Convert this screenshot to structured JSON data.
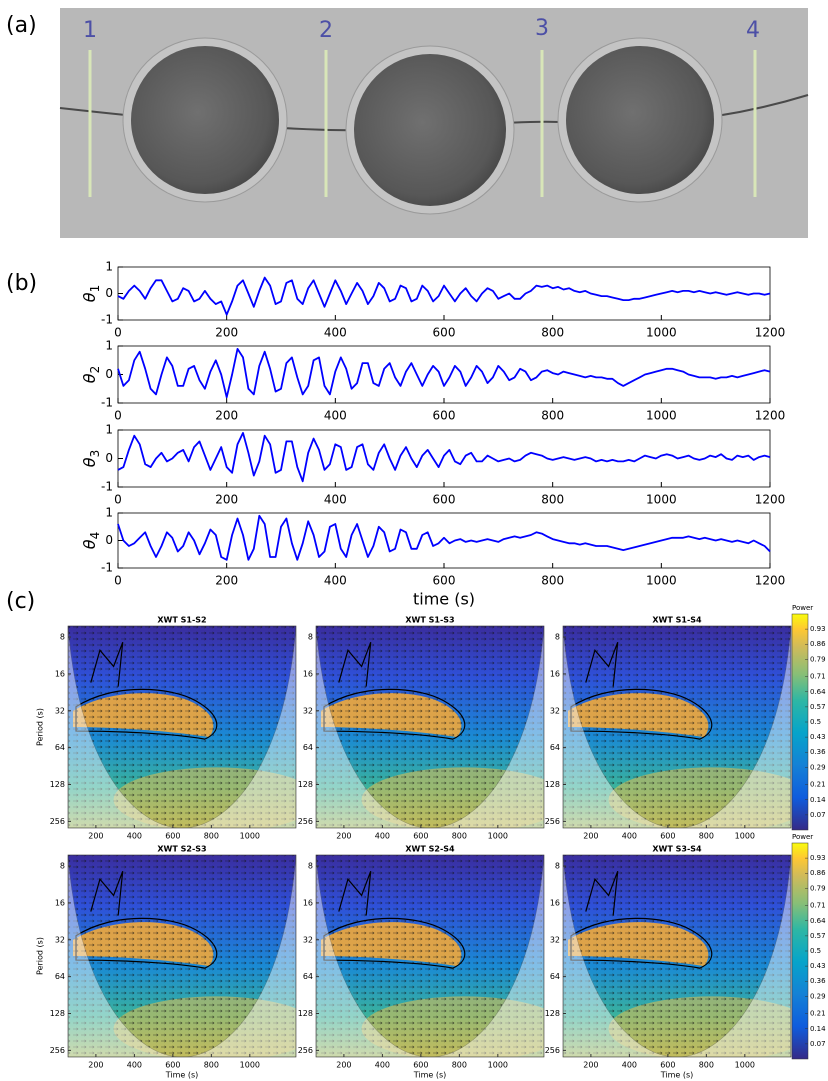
{
  "panel_labels": [
    "(a)",
    "(b)",
    "(c)"
  ],
  "photo_markers": [
    "1",
    "2",
    "3",
    "4"
  ],
  "chart_data": [
    {
      "type": "line",
      "ylabel": [
        "θ",
        "1"
      ],
      "color": "#0000ff",
      "xlim": [
        0,
        1200
      ],
      "ylim": [
        -1,
        1
      ],
      "xticks": [
        0,
        200,
        400,
        600,
        800,
        1000,
        1200
      ],
      "yticks": [
        -1,
        0,
        1
      ],
      "x": [
        0,
        10,
        20,
        30,
        40,
        50,
        60,
        70,
        80,
        90,
        100,
        110,
        120,
        130,
        140,
        150,
        160,
        170,
        180,
        190,
        200,
        210,
        220,
        230,
        240,
        250,
        260,
        270,
        280,
        290,
        300,
        310,
        320,
        330,
        340,
        350,
        360,
        370,
        380,
        390,
        400,
        410,
        420,
        430,
        440,
        450,
        460,
        470,
        480,
        490,
        500,
        510,
        520,
        530,
        540,
        550,
        560,
        570,
        580,
        590,
        600,
        610,
        620,
        630,
        640,
        650,
        660,
        670,
        680,
        690,
        700,
        710,
        720,
        730,
        740,
        750,
        760,
        770,
        780,
        790,
        800,
        810,
        820,
        830,
        840,
        850,
        860,
        870,
        880,
        890,
        900,
        910,
        920,
        930,
        940,
        950,
        960,
        970,
        980,
        990,
        1000,
        1010,
        1020,
        1030,
        1040,
        1050,
        1060,
        1070,
        1080,
        1090,
        1100,
        1110,
        1120,
        1130,
        1140,
        1150,
        1160,
        1170,
        1180,
        1190,
        1200
      ],
      "values": [
        -0.1,
        -0.2,
        0.1,
        0.3,
        0.1,
        -0.2,
        0.2,
        0.5,
        0.5,
        0.1,
        -0.3,
        -0.2,
        0.2,
        0.1,
        -0.3,
        -0.2,
        0.1,
        -0.2,
        -0.4,
        -0.3,
        -0.8,
        -0.3,
        0.3,
        0.5,
        0.0,
        -0.5,
        0.1,
        0.6,
        0.3,
        -0.4,
        -0.3,
        0.4,
        0.5,
        -0.2,
        -0.4,
        0.2,
        0.5,
        0.0,
        -0.5,
        0.0,
        0.5,
        0.1,
        -0.4,
        0.0,
        0.4,
        0.1,
        -0.4,
        -0.1,
        0.4,
        0.2,
        -0.3,
        -0.2,
        0.3,
        0.2,
        -0.3,
        -0.2,
        0.3,
        0.1,
        -0.3,
        -0.1,
        0.3,
        0.0,
        -0.3,
        0.0,
        0.2,
        -0.1,
        -0.3,
        0.0,
        0.2,
        0.1,
        -0.2,
        -0.1,
        0.0,
        -0.2,
        -0.2,
        0.0,
        0.1,
        0.3,
        0.25,
        0.3,
        0.2,
        0.25,
        0.15,
        0.2,
        0.1,
        0.05,
        0.1,
        0.0,
        -0.05,
        -0.1,
        -0.1,
        -0.15,
        -0.2,
        -0.25,
        -0.25,
        -0.2,
        -0.2,
        -0.15,
        -0.1,
        -0.05,
        0.0,
        0.05,
        0.1,
        0.05,
        0.1,
        0.1,
        0.05,
        0.1,
        0.05,
        0.0,
        0.05,
        0.0,
        -0.05,
        0.0,
        0.05,
        0.0,
        -0.05,
        0.0,
        0.0,
        -0.05,
        0.0
      ]
    },
    {
      "type": "line",
      "ylabel": [
        "θ",
        "2"
      ],
      "color": "#0000ff",
      "xlim": [
        0,
        1200
      ],
      "ylim": [
        -1,
        1
      ],
      "xticks": [
        0,
        200,
        400,
        600,
        800,
        1000,
        1200
      ],
      "yticks": [
        -1,
        0,
        1
      ],
      "x": [
        0,
        10,
        20,
        30,
        40,
        50,
        60,
        70,
        80,
        90,
        100,
        110,
        120,
        130,
        140,
        150,
        160,
        170,
        180,
        190,
        200,
        210,
        220,
        230,
        240,
        250,
        260,
        270,
        280,
        290,
        300,
        310,
        320,
        330,
        340,
        350,
        360,
        370,
        380,
        390,
        400,
        410,
        420,
        430,
        440,
        450,
        460,
        470,
        480,
        490,
        500,
        510,
        520,
        530,
        540,
        550,
        560,
        570,
        580,
        590,
        600,
        610,
        620,
        630,
        640,
        650,
        660,
        670,
        680,
        690,
        700,
        710,
        720,
        730,
        740,
        750,
        760,
        770,
        780,
        790,
        800,
        810,
        820,
        830,
        840,
        850,
        860,
        870,
        880,
        890,
        900,
        910,
        920,
        930,
        940,
        950,
        960,
        970,
        980,
        990,
        1000,
        1010,
        1020,
        1030,
        1040,
        1050,
        1060,
        1070,
        1080,
        1090,
        1100,
        1110,
        1120,
        1130,
        1140,
        1150,
        1160,
        1170,
        1180,
        1190,
        1200
      ],
      "values": [
        0.2,
        -0.4,
        -0.2,
        0.5,
        0.8,
        0.2,
        -0.5,
        -0.7,
        0.0,
        0.6,
        0.3,
        -0.4,
        -0.4,
        0.2,
        0.3,
        -0.2,
        -0.5,
        0.1,
        0.5,
        0.0,
        -0.8,
        0.0,
        0.9,
        0.6,
        -0.5,
        -0.7,
        0.3,
        0.8,
        0.2,
        -0.6,
        -0.5,
        0.4,
        0.6,
        -0.1,
        -0.7,
        -0.4,
        0.5,
        0.6,
        -0.4,
        -0.7,
        0.1,
        0.6,
        0.2,
        -0.5,
        -0.3,
        0.4,
        0.4,
        -0.3,
        -0.4,
        0.2,
        0.4,
        -0.1,
        -0.4,
        0.1,
        0.4,
        0.0,
        -0.4,
        0.0,
        0.3,
        0.1,
        -0.4,
        -0.1,
        0.3,
        0.1,
        -0.4,
        -0.1,
        0.3,
        0.1,
        -0.3,
        -0.1,
        0.3,
        0.1,
        -0.2,
        -0.1,
        0.2,
        0.1,
        -0.2,
        -0.1,
        0.1,
        0.15,
        0.05,
        0.0,
        0.1,
        0.05,
        0.0,
        -0.05,
        -0.1,
        -0.05,
        -0.1,
        -0.1,
        -0.15,
        -0.15,
        -0.3,
        -0.4,
        -0.3,
        -0.2,
        -0.1,
        0.0,
        0.05,
        0.1,
        0.15,
        0.2,
        0.2,
        0.15,
        0.1,
        0.0,
        -0.05,
        -0.1,
        -0.1,
        -0.1,
        -0.15,
        -0.1,
        -0.1,
        -0.05,
        -0.1,
        -0.05,
        0.0,
        0.05,
        0.1,
        0.15,
        0.1
      ]
    },
    {
      "type": "line",
      "ylabel": [
        "θ",
        "3"
      ],
      "color": "#0000ff",
      "xlim": [
        0,
        1200
      ],
      "ylim": [
        -1,
        1
      ],
      "xticks": [
        0,
        200,
        400,
        600,
        800,
        1000,
        1200
      ],
      "yticks": [
        -1,
        0,
        1
      ],
      "x": [
        0,
        10,
        20,
        30,
        40,
        50,
        60,
        70,
        80,
        90,
        100,
        110,
        120,
        130,
        140,
        150,
        160,
        170,
        180,
        190,
        200,
        210,
        220,
        230,
        240,
        250,
        260,
        270,
        280,
        290,
        300,
        310,
        320,
        330,
        340,
        350,
        360,
        370,
        380,
        390,
        400,
        410,
        420,
        430,
        440,
        450,
        460,
        470,
        480,
        490,
        500,
        510,
        520,
        530,
        540,
        550,
        560,
        570,
        580,
        590,
        600,
        610,
        620,
        630,
        640,
        650,
        660,
        670,
        680,
        690,
        700,
        710,
        720,
        730,
        740,
        750,
        760,
        770,
        780,
        790,
        800,
        810,
        820,
        830,
        840,
        850,
        860,
        870,
        880,
        890,
        900,
        910,
        920,
        930,
        940,
        950,
        960,
        970,
        980,
        990,
        1000,
        1010,
        1020,
        1030,
        1040,
        1050,
        1060,
        1070,
        1080,
        1090,
        1100,
        1110,
        1120,
        1130,
        1140,
        1150,
        1160,
        1170,
        1180,
        1190,
        1200
      ],
      "values": [
        -0.4,
        -0.3,
        0.3,
        0.8,
        0.5,
        -0.2,
        -0.3,
        0.0,
        0.2,
        -0.1,
        0.0,
        0.2,
        0.3,
        -0.1,
        0.4,
        0.6,
        0.1,
        -0.4,
        0.0,
        0.4,
        -0.3,
        -0.5,
        0.5,
        0.9,
        0.2,
        -0.6,
        -0.1,
        0.8,
        0.5,
        -0.5,
        -0.4,
        0.6,
        0.6,
        -0.3,
        -0.8,
        0.2,
        0.7,
        0.3,
        -0.4,
        -0.2,
        0.5,
        0.4,
        -0.4,
        -0.3,
        0.4,
        0.5,
        -0.2,
        -0.4,
        0.2,
        0.5,
        0.0,
        -0.4,
        0.1,
        0.4,
        0.0,
        -0.3,
        0.1,
        0.3,
        0.0,
        -0.3,
        0.1,
        0.3,
        -0.1,
        -0.2,
        0.1,
        0.2,
        -0.1,
        -0.1,
        0.1,
        0.0,
        -0.1,
        -0.05,
        0.0,
        -0.1,
        -0.05,
        0.1,
        0.2,
        0.15,
        0.1,
        0.0,
        -0.05,
        0.0,
        0.05,
        0.0,
        -0.05,
        0.0,
        0.05,
        0.0,
        -0.1,
        -0.05,
        -0.1,
        -0.05,
        -0.1,
        -0.1,
        -0.05,
        -0.1,
        0.0,
        0.1,
        0.05,
        0.0,
        0.1,
        0.15,
        0.1,
        0.0,
        0.05,
        0.1,
        0.0,
        -0.05,
        0.0,
        0.1,
        0.05,
        0.15,
        0.0,
        -0.05,
        0.1,
        0.05,
        0.1,
        -0.05,
        0.05,
        0.1,
        0.05
      ]
    },
    {
      "type": "line",
      "ylabel": [
        "θ",
        "4"
      ],
      "xlabel": "time (s)",
      "color": "#0000ff",
      "xlim": [
        0,
        1200
      ],
      "ylim": [
        -1,
        1
      ],
      "xticks": [
        0,
        200,
        400,
        600,
        800,
        1000,
        1200
      ],
      "yticks": [
        -1,
        0,
        1
      ],
      "x": [
        0,
        10,
        20,
        30,
        40,
        50,
        60,
        70,
        80,
        90,
        100,
        110,
        120,
        130,
        140,
        150,
        160,
        170,
        180,
        190,
        200,
        210,
        220,
        230,
        240,
        250,
        260,
        270,
        280,
        290,
        300,
        310,
        320,
        330,
        340,
        350,
        360,
        370,
        380,
        390,
        400,
        410,
        420,
        430,
        440,
        450,
        460,
        470,
        480,
        490,
        500,
        510,
        520,
        530,
        540,
        550,
        560,
        570,
        580,
        590,
        600,
        610,
        620,
        630,
        640,
        650,
        660,
        670,
        680,
        690,
        700,
        710,
        720,
        730,
        740,
        750,
        760,
        770,
        780,
        790,
        800,
        810,
        820,
        830,
        840,
        850,
        860,
        870,
        880,
        890,
        900,
        910,
        920,
        930,
        940,
        950,
        960,
        970,
        980,
        990,
        1000,
        1010,
        1020,
        1030,
        1040,
        1050,
        1060,
        1070,
        1080,
        1090,
        1100,
        1110,
        1120,
        1130,
        1140,
        1150,
        1160,
        1170,
        1180,
        1190,
        1200
      ],
      "values": [
        0.6,
        0.0,
        -0.2,
        -0.1,
        0.1,
        0.3,
        -0.2,
        -0.6,
        -0.2,
        0.3,
        0.1,
        -0.4,
        -0.2,
        0.3,
        0.0,
        -0.5,
        -0.1,
        0.4,
        0.2,
        -0.6,
        -0.7,
        0.2,
        0.8,
        0.2,
        -0.7,
        -0.3,
        0.9,
        0.6,
        -0.6,
        -0.6,
        0.5,
        0.8,
        -0.1,
        -0.7,
        -0.1,
        0.7,
        0.2,
        -0.6,
        -0.4,
        0.5,
        0.6,
        -0.3,
        -0.6,
        0.2,
        0.6,
        0.0,
        -0.6,
        -0.2,
        0.5,
        0.3,
        -0.4,
        -0.3,
        0.4,
        0.3,
        -0.3,
        -0.3,
        0.2,
        0.3,
        -0.2,
        -0.1,
        0.1,
        -0.1,
        0.0,
        0.05,
        -0.05,
        0.0,
        -0.05,
        0.0,
        0.05,
        0.0,
        -0.05,
        0.05,
        0.1,
        0.15,
        0.1,
        0.15,
        0.2,
        0.3,
        0.25,
        0.15,
        0.05,
        0.0,
        -0.05,
        -0.1,
        -0.1,
        -0.15,
        -0.1,
        -0.15,
        -0.2,
        -0.2,
        -0.2,
        -0.25,
        -0.3,
        -0.35,
        -0.3,
        -0.25,
        -0.2,
        -0.15,
        -0.1,
        -0.05,
        0.0,
        0.05,
        0.1,
        0.1,
        0.1,
        0.15,
        0.1,
        0.05,
        0.1,
        0.05,
        0.0,
        0.05,
        0.0,
        -0.05,
        0.0,
        -0.05,
        -0.1,
        0.0,
        -0.1,
        -0.2,
        -0.4
      ]
    },
    {
      "type": "wavelet",
      "title": "XWT S1-S2",
      "ylabel": "Period (s)",
      "xlim": [
        55,
        1240
      ],
      "ylim": [
        6.5,
        290
      ],
      "log_base": 2,
      "xticks": [
        200,
        400,
        600,
        800,
        1000
      ],
      "yticks": [
        8,
        16,
        32,
        64,
        128,
        256
      ]
    },
    {
      "type": "wavelet",
      "title": "XWT S1-S3",
      "xlim": [
        55,
        1240
      ],
      "ylim": [
        6.5,
        290
      ],
      "log_base": 2,
      "xticks": [
        200,
        400,
        600,
        800,
        1000
      ],
      "yticks": [
        8,
        16,
        32,
        64,
        128,
        256
      ]
    },
    {
      "type": "wavelet",
      "title": "XWT S1-S4",
      "xlim": [
        55,
        1240
      ],
      "ylim": [
        6.5,
        290
      ],
      "log_base": 2,
      "xticks": [
        200,
        400,
        600,
        800,
        1000
      ],
      "yticks": [
        8,
        16,
        32,
        64,
        128,
        256
      ],
      "colorbar": {
        "title": "Power",
        "lim": [
          0,
          1
        ],
        "ticks": [
          0.07,
          0.14,
          0.21,
          0.29,
          0.36,
          0.43,
          0.5,
          0.57,
          0.64,
          0.71,
          0.79,
          0.86,
          0.93
        ]
      }
    },
    {
      "type": "wavelet",
      "title": "XWT S2-S3",
      "ylabel": "Period (s)",
      "xlabel": "Time (s)",
      "xlim": [
        55,
        1240
      ],
      "ylim": [
        6.5,
        290
      ],
      "log_base": 2,
      "xticks": [
        200,
        400,
        600,
        800,
        1000
      ],
      "yticks": [
        8,
        16,
        32,
        64,
        128,
        256
      ]
    },
    {
      "type": "wavelet",
      "title": "XWT S2-S4",
      "xlabel": "Time (s)",
      "xlim": [
        55,
        1240
      ],
      "ylim": [
        6.5,
        290
      ],
      "log_base": 2,
      "xticks": [
        200,
        400,
        600,
        800,
        1000
      ],
      "yticks": [
        8,
        16,
        32,
        64,
        128,
        256
      ]
    },
    {
      "type": "wavelet",
      "title": "XWT S3-S4",
      "xlabel": "Time (s)",
      "xlim": [
        55,
        1240
      ],
      "ylim": [
        6.5,
        290
      ],
      "log_base": 2,
      "xticks": [
        200,
        400,
        600,
        800,
        1000
      ],
      "yticks": [
        8,
        16,
        32,
        64,
        128,
        256
      ],
      "colorbar": {
        "title": "Power",
        "lim": [
          0,
          1
        ],
        "ticks": [
          0.07,
          0.14,
          0.21,
          0.29,
          0.36,
          0.43,
          0.5,
          0.57,
          0.64,
          0.71,
          0.79,
          0.86,
          0.93
        ]
      }
    }
  ]
}
